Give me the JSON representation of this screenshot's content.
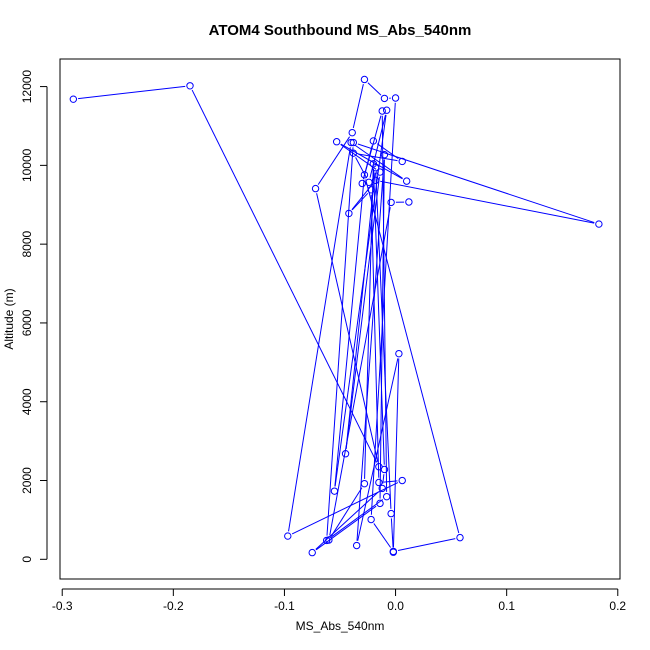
{
  "chart_data": {
    "type": "line",
    "title": "ATOM4 Southbound MS_Abs_540nm",
    "xlabel": "MS_Abs_540nm",
    "ylabel": "Altitude (m)",
    "xlim": [
      -0.302,
      0.202
    ],
    "ylim": [
      -500,
      12700
    ],
    "xticks": [
      -0.3,
      -0.2,
      -0.1,
      0.0,
      0.1,
      0.2
    ],
    "xtick_labels": [
      "-0.3",
      "-0.2",
      "-0.1",
      "0.0",
      "0.1",
      "0.2"
    ],
    "yticks": [
      0,
      2000,
      4000,
      6000,
      8000,
      10000,
      12000
    ],
    "ytick_labels": [
      "0",
      "2000",
      "4000",
      "6000",
      "8000",
      "10000",
      "12000"
    ],
    "grid": false,
    "legend": "none",
    "colors": {
      "series": "#0000ff",
      "frame": "#000000",
      "background": "#ffffff"
    },
    "series": [
      {
        "marker": "open-circle",
        "x": [
          -0.29,
          -0.185,
          -0.015,
          -0.072,
          -0.039,
          -0.028,
          -0.01,
          0.0,
          -0.022,
          -0.002,
          0.058,
          -0.028,
          -0.055,
          -0.008,
          -0.024,
          -0.038,
          0.006,
          -0.02,
          -0.03,
          -0.012,
          -0.008,
          -0.062,
          -0.038,
          0.183,
          -0.018,
          -0.042,
          -0.022,
          -0.015,
          0.006,
          -0.097,
          -0.04,
          0.01,
          -0.053,
          -0.014,
          -0.045,
          -0.018,
          -0.004,
          -0.002,
          0.003,
          -0.035,
          -0.01,
          -0.014,
          -0.075,
          -0.012,
          -0.01,
          -0.02,
          -0.028,
          -0.06,
          -0.004,
          0.012
        ],
        "y": [
          11680,
          12020,
          2350,
          9410,
          10830,
          12180,
          11700,
          11710,
          1010,
          200,
          550,
          9760,
          1730,
          11400,
          9570,
          10310,
          10100,
          10620,
          9540,
          11380,
          1590,
          480,
          10580,
          8510,
          9620,
          8780,
          9380,
          1950,
          2000,
          590,
          10580,
          9600,
          10600,
          9830,
          2680,
          9940,
          1160,
          180,
          5220,
          350,
          10270,
          1420,
          170,
          1800,
          2280,
          10040,
          1920,
          490,
          9060,
          9070
        ]
      }
    ]
  }
}
